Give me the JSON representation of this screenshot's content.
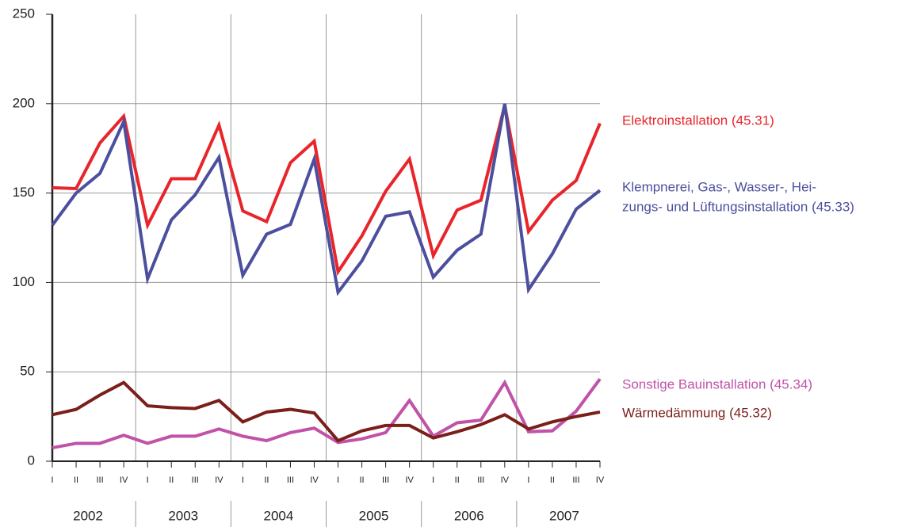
{
  "chart_data": {
    "type": "line",
    "categories": [
      "I",
      "II",
      "III",
      "IV",
      "I",
      "II",
      "III",
      "IV",
      "I",
      "II",
      "III",
      "IV",
      "I",
      "II",
      "III",
      "IV",
      "I",
      "II",
      "III",
      "IV",
      "I",
      "II",
      "III",
      "IV"
    ],
    "years": [
      "2002",
      "2003",
      "2004",
      "2005",
      "2006",
      "2007"
    ],
    "ylim": [
      0,
      250
    ],
    "yticks": [
      0,
      50,
      100,
      150,
      200,
      250
    ],
    "grid": true,
    "series": [
      {
        "name": [
          "Elektroinstallation (45.31)"
        ],
        "color": "#e8252b",
        "values": [
          153,
          152.5,
          178,
          193,
          132,
          158,
          158,
          188,
          140,
          134,
          167,
          179,
          106,
          126,
          151,
          169,
          115,
          140.5,
          146,
          199,
          128.5,
          146,
          157,
          189
        ]
      },
      {
        "name": [
          "Klempnerei, Gas-, Wasser-, Hei-",
          "zungs- und Lüftungsinstallation (45.33)"
        ],
        "color": "#4b4f9e",
        "values": [
          132,
          150,
          161,
          190,
          102,
          135,
          149,
          170,
          104,
          127,
          132.5,
          169,
          94.5,
          112,
          137,
          139.5,
          103,
          118,
          127,
          200,
          96,
          116,
          141,
          151.5
        ]
      },
      {
        "name": [
          "Sonstige Bauinstallation (45.34)"
        ],
        "color": "#c052a8",
        "values": [
          7.5,
          10,
          10,
          14.5,
          10,
          14,
          14,
          18,
          14,
          11.5,
          16,
          18.5,
          10.5,
          12.5,
          16,
          34,
          14,
          21.5,
          23,
          44,
          16.5,
          17,
          28,
          46
        ]
      },
      {
        "name": [
          "Wärmedämmung (45.32)"
        ],
        "color": "#7b1f1a",
        "values": [
          26,
          29,
          37,
          44,
          31,
          30,
          29.5,
          34,
          22,
          27.5,
          29,
          27,
          11.5,
          17,
          20,
          20,
          13,
          16.5,
          20.5,
          26,
          18,
          22,
          25,
          27.5
        ]
      }
    ]
  }
}
